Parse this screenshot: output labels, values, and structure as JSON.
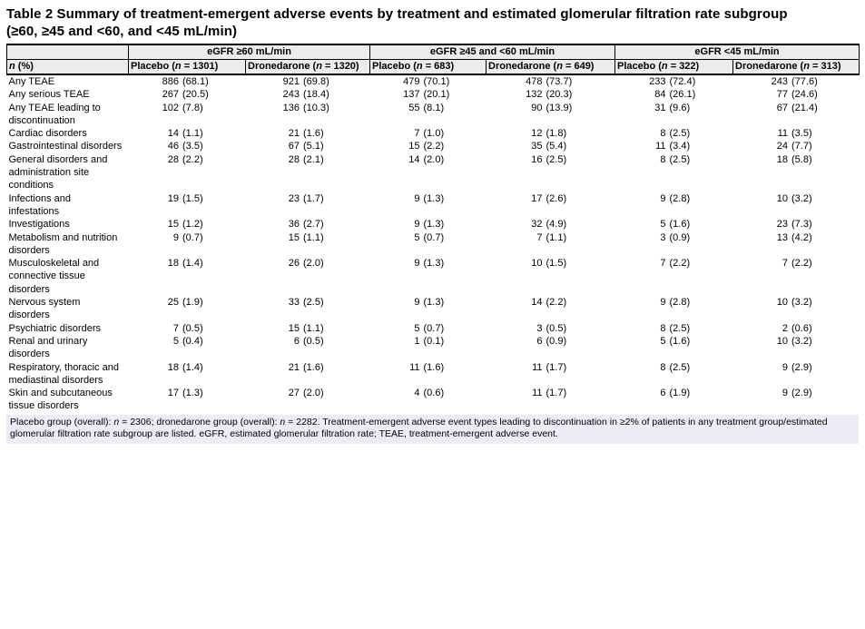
{
  "title": "Table 2 Summary of treatment-emergent adverse events by treatment and estimated glomerular filtration rate subgroup\n(≥60, ≥45 and <60, and <45 mL/min)",
  "table": {
    "group_headers": [
      {
        "label": "eGFR ≥60 mL/min"
      },
      {
        "label": "eGFR ≥45 and <60 mL/min"
      },
      {
        "label": "eGFR <45 mL/min"
      }
    ],
    "row_header_segments": [
      {
        "t": "n",
        "i": true
      },
      {
        "t": " (%)",
        "i": false
      }
    ],
    "column_headers": [
      {
        "segments": [
          {
            "t": "Placebo (",
            "i": false
          },
          {
            "t": "n",
            "i": true
          },
          {
            "t": " = 1301)",
            "i": false
          }
        ]
      },
      {
        "segments": [
          {
            "t": "Dronedarone (",
            "i": false
          },
          {
            "t": "n",
            "i": true
          },
          {
            "t": " = 1320)",
            "i": false
          }
        ]
      },
      {
        "segments": [
          {
            "t": "Placebo (",
            "i": false
          },
          {
            "t": "n",
            "i": true
          },
          {
            "t": " = 683)",
            "i": false
          }
        ]
      },
      {
        "segments": [
          {
            "t": "Dronedarone (",
            "i": false
          },
          {
            "t": "n",
            "i": true
          },
          {
            "t": " = 649)",
            "i": false
          }
        ]
      },
      {
        "segments": [
          {
            "t": "Placebo (",
            "i": false
          },
          {
            "t": "n",
            "i": true
          },
          {
            "t": " = 322)",
            "i": false
          }
        ]
      },
      {
        "segments": [
          {
            "t": "Dronedarone (",
            "i": false
          },
          {
            "t": "n",
            "i": true
          },
          {
            "t": " = 313)",
            "i": false
          }
        ]
      }
    ],
    "rows": [
      {
        "label": "Any TEAE",
        "values": [
          "886 (68.1)",
          "921 (69.8)",
          "479 (70.1)",
          "478 (73.7)",
          "233 (72.4)",
          "243 (77.6)"
        ]
      },
      {
        "label": "Any serious TEAE",
        "values": [
          "267 (20.5)",
          "243 (18.4)",
          "137 (20.1)",
          "132 (20.3)",
          "84 (26.1)",
          "77 (24.6)"
        ]
      },
      {
        "label": "Any TEAE leading to\ndiscontinuation",
        "values": [
          "102 (7.8)",
          "136 (10.3)",
          "55 (8.1)",
          "90 (13.9)",
          "31 (9.6)",
          "67 (21.4)"
        ]
      },
      {
        "label": "Cardiac disorders",
        "values": [
          "14 (1.1)",
          "21 (1.6)",
          "7 (1.0)",
          "12 (1.8)",
          "8 (2.5)",
          "11 (3.5)"
        ]
      },
      {
        "label": "Gastrointestinal disorders",
        "values": [
          "46 (3.5)",
          "67 (5.1)",
          "15 (2.2)",
          "35 (5.4)",
          "11 (3.4)",
          "24 (7.7)"
        ]
      },
      {
        "label": "General disorders and\nadministration site\nconditions",
        "values": [
          "28 (2.2)",
          "28 (2.1)",
          "14 (2.0)",
          "16 (2.5)",
          "8 (2.5)",
          "18 (5.8)"
        ]
      },
      {
        "label": "Infections and\ninfestations",
        "values": [
          "19 (1.5)",
          "23 (1.7)",
          "9 (1.3)",
          "17 (2.6)",
          "9 (2.8)",
          "10 (3.2)"
        ]
      },
      {
        "label": "Investigations",
        "values": [
          "15 (1.2)",
          "36 (2.7)",
          "9 (1.3)",
          "32 (4.9)",
          "5 (1.6)",
          "23 (7.3)"
        ]
      },
      {
        "label": "Metabolism and nutrition\ndisorders",
        "values": [
          "9 (0.7)",
          "15 (1.1)",
          "5 (0.7)",
          "7 (1.1)",
          "3 (0.9)",
          "13 (4.2)"
        ]
      },
      {
        "label": "Musculoskeletal and\nconnective tissue\ndisorders",
        "values": [
          "18 (1.4)",
          "26 (2.0)",
          "9 (1.3)",
          "10 (1.5)",
          "7 (2.2)",
          "7 (2.2)"
        ]
      },
      {
        "label": "Nervous system\ndisorders",
        "values": [
          "25 (1.9)",
          "33 (2.5)",
          "9 (1.3)",
          "14 (2.2)",
          "9 (2.8)",
          "10 (3.2)"
        ]
      },
      {
        "label": "Psychiatric disorders",
        "values": [
          "7 (0.5)",
          "15 (1.1)",
          "5 (0.7)",
          "3 (0.5)",
          "8 (2.5)",
          "2 (0.6)"
        ]
      },
      {
        "label": "Renal and urinary\ndisorders",
        "values": [
          "5 (0.4)",
          "6 (0.5)",
          "1 (0.1)",
          "6 (0.9)",
          "5 (1.6)",
          "10 (3.2)"
        ]
      },
      {
        "label": "Respiratory, thoracic and\nmediastinal disorders",
        "values": [
          "18 (1.4)",
          "21 (1.6)",
          "11 (1.6)",
          "11 (1.7)",
          "8 (2.5)",
          "9 (2.9)"
        ]
      },
      {
        "label": "Skin and subcutaneous\ntissue disorders",
        "values": [
          "17 (1.3)",
          "27 (2.0)",
          "4 (0.6)",
          "11 (1.7)",
          "6 (1.9)",
          "9 (2.9)"
        ]
      }
    ]
  },
  "footnote_segments": [
    {
      "t": "Placebo group (overall): ",
      "i": false
    },
    {
      "t": "n",
      "i": true
    },
    {
      "t": " = 2306; dronedarone group (overall): ",
      "i": false
    },
    {
      "t": "n",
      "i": true
    },
    {
      "t": " = 2282. Treatment-emergent adverse event types leading to discontinuation in ≥2% of patients in any treatment group/estimated glomerular filtration rate subgroup are listed. eGFR, estimated glomerular filtration rate; TEAE, treatment-emergent adverse event.",
      "i": false
    }
  ],
  "colors": {
    "header_bg": "#ececec",
    "footnote_bg": "#ebecf8",
    "border": "#000000",
    "text": "#000000"
  }
}
